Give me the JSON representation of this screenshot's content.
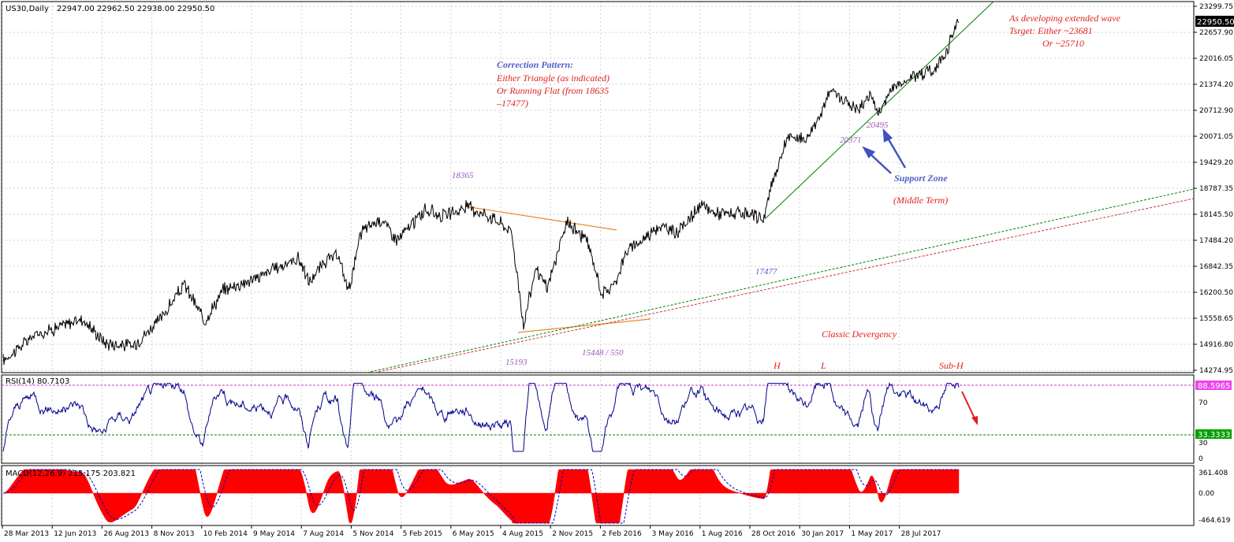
{
  "header": {
    "symbol": "US30,Daily",
    "ohlc": "22947.00 22962.50 22938.00 22950.50"
  },
  "colors": {
    "price_line": "#000000",
    "grid": "#c8c8c8",
    "rsi_line": "#00008b",
    "macd_hist": "#ff0000",
    "macd_signal": "#0000cd",
    "annotation_red": "#e0201e",
    "annotation_purple": "#9b59b6",
    "annotation_blue": "#5060c8",
    "trend_orange": "#e88a2a",
    "trend_green": "#008000",
    "trend_red_dotted": "#cc3333"
  },
  "chart_data": {
    "type": "line",
    "title": "",
    "price_axis": {
      "ylim": [
        14274.95,
        23299.75
      ],
      "ticks": [
        "23299.75",
        "22657.90",
        "22016.05",
        "21374.20",
        "20712.90",
        "20071.05",
        "19429.20",
        "18787.35",
        "18145.50",
        "17484.20",
        "16842.35",
        "16200.50",
        "15558.65",
        "14916.80",
        "14274.95"
      ],
      "current_label": "22950.50"
    },
    "x_axis": {
      "tick_labels": [
        "28 Mar 2013",
        "12 Jun 2013",
        "26 Aug 2013",
        "8 Nov 2013",
        "10 Feb 2014",
        "9 May 2014",
        "7 Aug 2014",
        "5 Nov 2014",
        "5 Feb 2015",
        "6 May 2015",
        "4 Aug 2015",
        "2 Nov 2015",
        "2 Feb 2016",
        "3 May 2016",
        "1 Aug 2016",
        "28 Oct 2016",
        "30 Jan 2017",
        "1 May 2017",
        "28 Jul 2017"
      ]
    },
    "series": [
      {
        "values_approx": [
          [
            0,
            14520
          ],
          [
            40,
            15150
          ],
          [
            75,
            15380
          ],
          [
            100,
            15550
          ],
          [
            130,
            14950
          ],
          [
            165,
            14880
          ],
          [
            200,
            15560
          ],
          [
            230,
            16400
          ],
          [
            255,
            15500
          ],
          [
            280,
            16280
          ],
          [
            320,
            16550
          ],
          [
            345,
            16800
          ],
          [
            375,
            17050
          ],
          [
            388,
            16450
          ],
          [
            410,
            17000
          ],
          [
            425,
            17100
          ],
          [
            438,
            16250
          ],
          [
            455,
            17750
          ],
          [
            480,
            18030
          ],
          [
            500,
            17500
          ],
          [
            535,
            18250
          ],
          [
            560,
            18100
          ],
          [
            590,
            18330
          ],
          [
            625,
            18020
          ],
          [
            645,
            17700
          ],
          [
            660,
            15370
          ],
          [
            675,
            16800
          ],
          [
            690,
            16300
          ],
          [
            715,
            17950
          ],
          [
            740,
            17500
          ],
          [
            760,
            16150
          ],
          [
            775,
            16400
          ],
          [
            790,
            17200
          ],
          [
            810,
            17500
          ],
          [
            830,
            17850
          ],
          [
            855,
            17700
          ],
          [
            885,
            18350
          ],
          [
            905,
            18170
          ],
          [
            930,
            18150
          ],
          [
            965,
            18050
          ],
          [
            975,
            18900
          ],
          [
            995,
            20050
          ],
          [
            1020,
            20020
          ],
          [
            1050,
            21200
          ],
          [
            1085,
            20730
          ],
          [
            1100,
            21150
          ],
          [
            1110,
            20600
          ],
          [
            1125,
            21220
          ],
          [
            1150,
            21550
          ],
          [
            1165,
            21650
          ],
          [
            1180,
            21700
          ],
          [
            1195,
            22150
          ],
          [
            1212,
            22950
          ]
        ]
      }
    ],
    "rsi": {
      "label": "RSI(14) 80.7103",
      "levels": [
        "88.5965",
        "33.3333"
      ],
      "ticks": [
        "100",
        "70",
        "30",
        "0"
      ]
    },
    "macd": {
      "label": "MACD(12,26,9) 215.175 203.821",
      "ticks": [
        "361.408",
        "0.00",
        "-464.619"
      ]
    },
    "annotations": {
      "correction_title": "Correction Pattern:",
      "correction_line1": "Either Triangle (as indicated)",
      "correction_line2": "Or Running Flat (from 18635",
      "correction_line3": "–17477)",
      "wave_line1": "As developing extended wave",
      "wave_line2": "Tsrget: Either  ~23681",
      "wave_line3": "Or          ~25710",
      "support_zone": "Support Zone",
      "middle_term": "(Middle Term)",
      "classic_divergency": "Classic Devergency",
      "h_label": "H",
      "l_label": "L",
      "subh_label": "Sub-H",
      "p18365": "18365",
      "p15193": "15193",
      "p15448": "15448 / 550",
      "p17477": "17477",
      "p20371": "20371",
      "p20495": "20495"
    }
  }
}
